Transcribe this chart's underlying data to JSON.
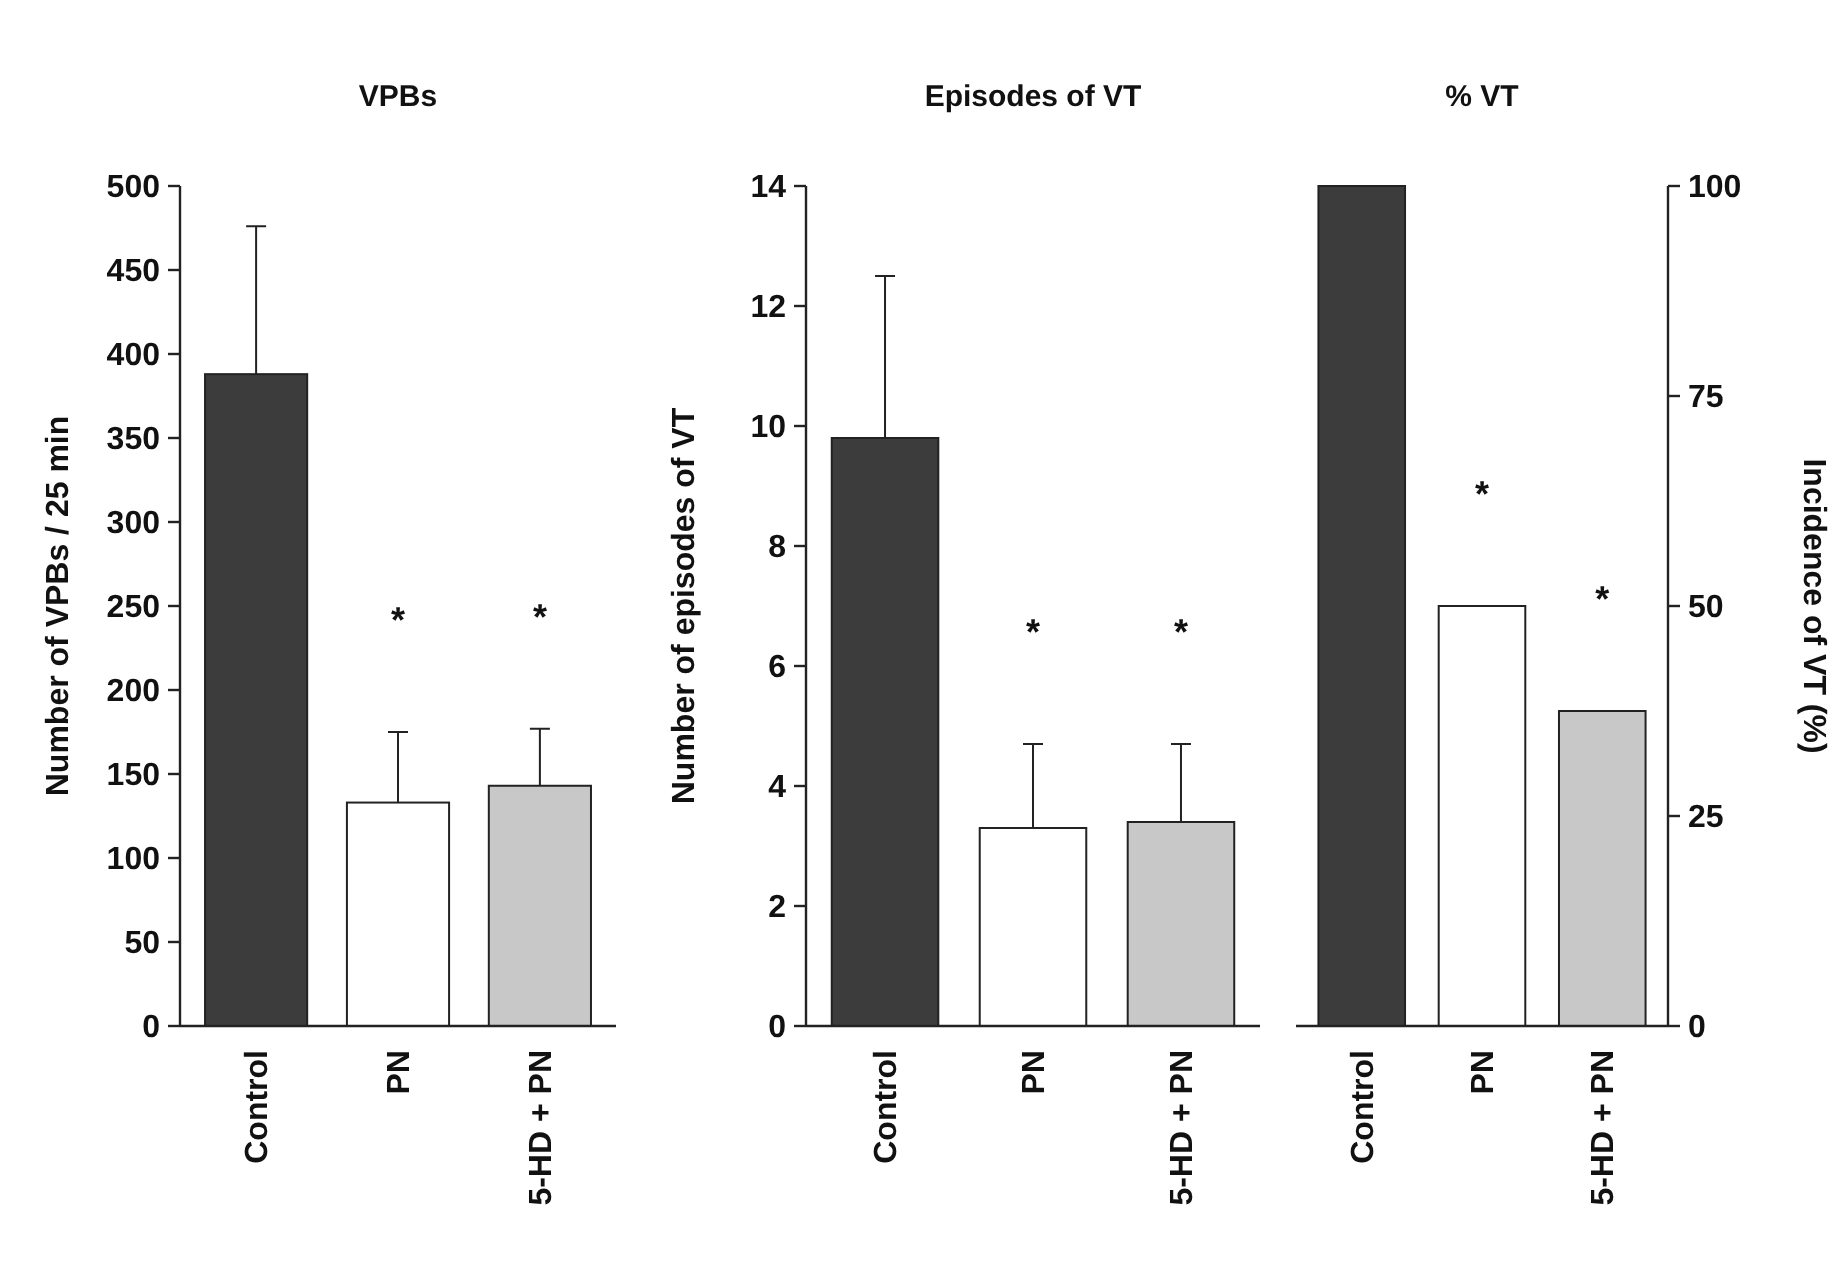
{
  "chart_data": [
    {
      "type": "bar",
      "title": "VPBs",
      "ylabel": "Number of VPBs / 25 min",
      "categories": [
        "Control",
        "PN",
        "5-HD + PN"
      ],
      "values": [
        388,
        133,
        143
      ],
      "errors": [
        [
          388,
          476
        ],
        [
          133,
          175
        ],
        [
          143,
          177
        ]
      ],
      "colors": [
        "#3c3c3c",
        "#ffffff",
        "#c8c8c8"
      ],
      "ylim": [
        0,
        500
      ],
      "yticks": [
        0,
        50,
        100,
        150,
        200,
        250,
        300,
        350,
        400,
        450,
        500
      ],
      "annotations": [
        "*",
        "*"
      ]
    },
    {
      "type": "bar",
      "title": "Episodes of VT",
      "ylabel": "Number of episodes of VT",
      "categories": [
        "Control",
        "PN",
        "5-HD + PN"
      ],
      "values": [
        9.8,
        3.3,
        3.4
      ],
      "errors": [
        [
          9.8,
          12.5
        ],
        [
          3.3,
          4.7
        ],
        [
          3.4,
          4.7
        ]
      ],
      "colors": [
        "#3c3c3c",
        "#ffffff",
        "#c8c8c8"
      ],
      "ylim": [
        0,
        14
      ],
      "yticks": [
        0,
        2,
        4,
        6,
        8,
        10,
        12,
        14
      ],
      "annotations": [
        "*",
        "*"
      ]
    },
    {
      "type": "bar",
      "title": "% VT",
      "y2label": "Incidence of VT (%)",
      "categories": [
        "Control",
        "PN",
        "5-HD + PN"
      ],
      "series": [
        {
          "axis": "y2",
          "values": [
            100,
            50,
            37.5
          ],
          "colors": [
            "#3c3c3c",
            "#ffffff",
            "#c8c8c8"
          ]
        }
      ],
      "y2lim": [
        0,
        100
      ],
      "y2ticks": [
        0,
        25,
        50,
        75,
        100
      ],
      "annotations": [
        "*",
        "*"
      ]
    }
  ]
}
